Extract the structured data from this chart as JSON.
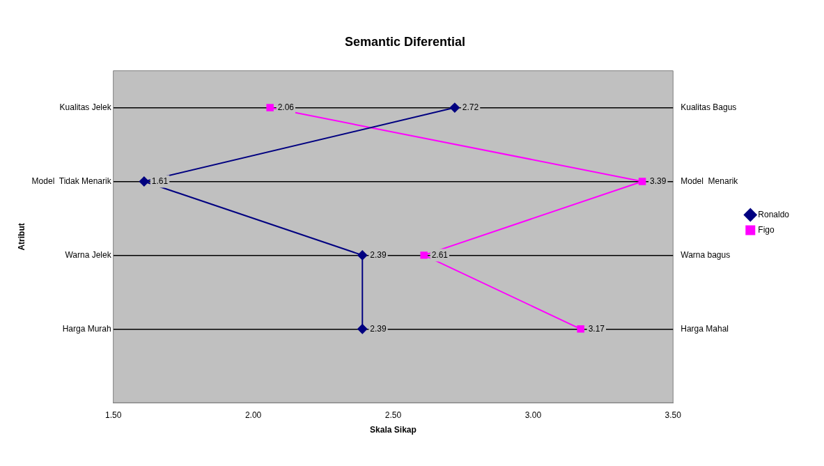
{
  "chart_data": {
    "type": "line",
    "orientation": "horizontal",
    "title": "Semantic Diferential",
    "xlabel": "Skala Sikap",
    "ylabel": "Atribut",
    "categories": [
      "Kualitas Jelek",
      "Model  Tidak Menarik",
      "Warna Jelek",
      "Harga Murah"
    ],
    "y2_categories": [
      "Kualitas Bagus",
      "Model  Menarik",
      "Warna bagus",
      "Harga Mahal"
    ],
    "series": [
      {
        "name": "Ronaldo",
        "color": "#000080",
        "marker": "diamond",
        "values": [
          2.72,
          1.61,
          2.39,
          2.39
        ]
      },
      {
        "name": "Figo",
        "color": "#ff00ff",
        "marker": "square",
        "values": [
          2.06,
          3.39,
          2.61,
          3.17
        ]
      }
    ],
    "xlim": [
      1.5,
      3.5
    ],
    "xticks": [
      {
        "value": 1.5,
        "label": "1.50"
      },
      {
        "value": 2,
        "label": "2.00"
      },
      {
        "value": 2.5,
        "label": "2.50"
      },
      {
        "value": 3,
        "label": "3.00"
      },
      {
        "value": 3.5,
        "label": "3.50"
      }
    ],
    "grid": "y",
    "legend": "right",
    "data_labels": true
  }
}
